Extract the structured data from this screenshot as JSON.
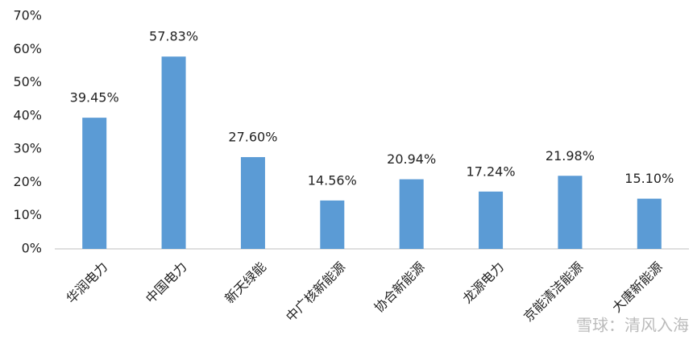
{
  "chart_data": {
    "type": "bar",
    "categories": [
      "华润电力",
      "中国电力",
      "新天绿能",
      "中广核新能源",
      "协合新能源",
      "龙源电力",
      "京能清洁能源",
      "大唐新能源"
    ],
    "values": [
      39.45,
      57.83,
      27.6,
      14.56,
      20.94,
      17.24,
      21.98,
      15.1
    ],
    "value_labels": [
      "39.45%",
      "57.83%",
      "27.60%",
      "14.56%",
      "20.94%",
      "17.24%",
      "21.98%",
      "15.10%"
    ],
    "color": "#5b9bd5",
    "ylim": [
      0,
      70
    ],
    "yticks": [
      {
        "value": 0,
        "label": "0%"
      },
      {
        "value": 10,
        "label": "10%"
      },
      {
        "value": 20,
        "label": "20%"
      },
      {
        "value": 30,
        "label": "30%"
      },
      {
        "value": 40,
        "label": "40%"
      },
      {
        "value": 50,
        "label": "50%"
      },
      {
        "value": 60,
        "label": "60%"
      },
      {
        "value": 70,
        "label": "70%"
      }
    ],
    "grid": false,
    "watermark": "雪球：清风入海"
  }
}
